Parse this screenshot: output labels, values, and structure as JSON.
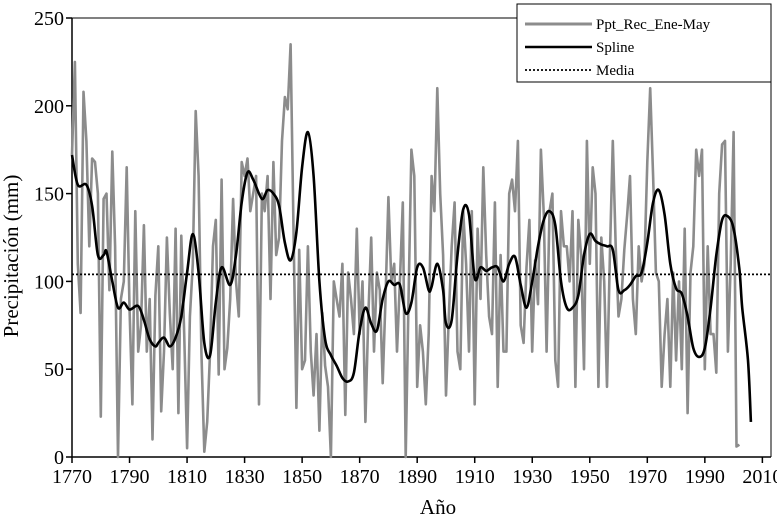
{
  "chart_data": {
    "type": "line",
    "title": "",
    "xlabel": "Año",
    "ylabel": "Precipitación (mm)",
    "xlim": [
      1770,
      2013
    ],
    "ylim": [
      0,
      250
    ],
    "x_ticks": [
      1770,
      1790,
      1810,
      1830,
      1850,
      1870,
      1890,
      1910,
      1930,
      1950,
      1970,
      1990,
      2010
    ],
    "y_ticks": [
      0,
      50,
      100,
      150,
      200,
      250
    ],
    "grid": false,
    "legend_position": "top-right",
    "series": [
      {
        "name": "Ppt_Rec_Ene-May",
        "color": "#8c8c8c",
        "style": "solid",
        "x_start": 1770,
        "values": [
          172,
          225,
          110,
          82,
          208,
          180,
          120,
          170,
          168,
          150,
          23,
          147,
          150,
          95,
          174,
          120,
          0,
          90,
          100,
          165,
          85,
          30,
          140,
          60,
          75,
          132,
          60,
          90,
          10,
          92,
          120,
          26,
          60,
          125,
          82,
          50,
          130,
          25,
          126,
          70,
          5,
          80,
          110,
          197,
          160,
          60,
          3,
          20,
          60,
          120,
          135,
          47,
          158,
          50,
          62,
          90,
          147,
          100,
          80,
          168,
          160,
          170,
          140,
          150,
          160,
          30,
          150,
          140,
          160,
          90,
          168,
          115,
          125,
          180,
          205,
          198,
          235,
          130,
          28,
          118,
          50,
          55,
          120,
          60,
          35,
          70,
          15,
          82,
          52,
          40,
          0,
          100,
          90,
          80,
          110,
          24,
          105,
          90,
          70,
          130,
          70,
          100,
          20,
          80,
          125,
          60,
          105,
          95,
          42,
          90,
          148,
          100,
          110,
          60,
          100,
          145,
          0,
          92,
          175,
          160,
          40,
          75,
          60,
          30,
          70,
          160,
          140,
          210,
          150,
          115,
          35,
          80,
          120,
          145,
          60,
          50,
          140,
          110,
          60,
          140,
          30,
          130,
          90,
          165,
          115,
          80,
          70,
          145,
          40,
          115,
          60,
          60,
          150,
          158,
          140,
          180,
          75,
          65,
          108,
          135,
          60,
          112,
          87,
          175,
          138,
          60,
          140,
          150,
          55,
          40,
          140,
          120,
          120,
          100,
          140,
          40,
          135,
          115,
          50,
          180,
          110,
          165,
          150,
          40,
          125,
          100,
          40,
          115,
          180,
          120,
          80,
          90,
          118,
          138,
          160,
          90,
          70,
          120,
          100,
          110,
          168,
          210,
          160,
          105,
          100,
          40,
          70,
          90,
          40,
          105,
          55,
          100,
          50,
          130,
          25,
          105,
          120,
          175,
          160,
          175,
          50,
          120,
          70,
          70,
          48,
          150,
          178,
          180,
          60,
          110,
          185,
          6,
          7
        ]
      },
      {
        "name": "Spline",
        "color": "#000000",
        "style": "solid",
        "points": [
          [
            1770,
            172
          ],
          [
            1772,
            155
          ],
          [
            1775,
            155
          ],
          [
            1777,
            143
          ],
          [
            1779,
            115
          ],
          [
            1781,
            115
          ],
          [
            1782,
            117
          ],
          [
            1784,
            100
          ],
          [
            1786,
            85
          ],
          [
            1788,
            88
          ],
          [
            1790,
            84
          ],
          [
            1793,
            86
          ],
          [
            1795,
            78
          ],
          [
            1797,
            67
          ],
          [
            1799,
            63
          ],
          [
            1800,
            65
          ],
          [
            1802,
            68
          ],
          [
            1804,
            63
          ],
          [
            1806,
            68
          ],
          [
            1808,
            80
          ],
          [
            1810,
            105
          ],
          [
            1812,
            127
          ],
          [
            1814,
            105
          ],
          [
            1816,
            65
          ],
          [
            1818,
            58
          ],
          [
            1820,
            88
          ],
          [
            1822,
            108
          ],
          [
            1825,
            98
          ],
          [
            1827,
            115
          ],
          [
            1829,
            145
          ],
          [
            1831,
            162
          ],
          [
            1833,
            158
          ],
          [
            1836,
            147
          ],
          [
            1838,
            152
          ],
          [
            1840,
            150
          ],
          [
            1842,
            143
          ],
          [
            1844,
            122
          ],
          [
            1846,
            112
          ],
          [
            1848,
            128
          ],
          [
            1850,
            165
          ],
          [
            1852,
            185
          ],
          [
            1854,
            160
          ],
          [
            1856,
            100
          ],
          [
            1858,
            67
          ],
          [
            1860,
            58
          ],
          [
            1862,
            52
          ],
          [
            1864,
            45
          ],
          [
            1866,
            43
          ],
          [
            1868,
            48
          ],
          [
            1870,
            72
          ],
          [
            1872,
            85
          ],
          [
            1874,
            76
          ],
          [
            1876,
            72
          ],
          [
            1878,
            90
          ],
          [
            1880,
            100
          ],
          [
            1882,
            98
          ],
          [
            1884,
            98
          ],
          [
            1886,
            82
          ],
          [
            1888,
            88
          ],
          [
            1890,
            108
          ],
          [
            1892,
            108
          ],
          [
            1894,
            95
          ],
          [
            1895,
            97
          ],
          [
            1897,
            110
          ],
          [
            1899,
            95
          ],
          [
            1900,
            76
          ],
          [
            1902,
            78
          ],
          [
            1904,
            115
          ],
          [
            1906,
            141
          ],
          [
            1908,
            138
          ],
          [
            1910,
            102
          ],
          [
            1912,
            108
          ],
          [
            1914,
            106
          ],
          [
            1916,
            108
          ],
          [
            1918,
            108
          ],
          [
            1920,
            100
          ],
          [
            1922,
            110
          ],
          [
            1924,
            114
          ],
          [
            1926,
            98
          ],
          [
            1928,
            85
          ],
          [
            1930,
            100
          ],
          [
            1932,
            120
          ],
          [
            1934,
            135
          ],
          [
            1936,
            140
          ],
          [
            1938,
            132
          ],
          [
            1940,
            100
          ],
          [
            1942,
            85
          ],
          [
            1944,
            85
          ],
          [
            1946,
            92
          ],
          [
            1948,
            115
          ],
          [
            1950,
            127
          ],
          [
            1952,
            123
          ],
          [
            1954,
            121
          ],
          [
            1956,
            120
          ],
          [
            1958,
            118
          ],
          [
            1960,
            95
          ],
          [
            1962,
            95
          ],
          [
            1964,
            98
          ],
          [
            1966,
            103
          ],
          [
            1968,
            105
          ],
          [
            1970,
            122
          ],
          [
            1972,
            145
          ],
          [
            1974,
            152
          ],
          [
            1976,
            138
          ],
          [
            1978,
            110
          ],
          [
            1980,
            96
          ],
          [
            1982,
            93
          ],
          [
            1984,
            80
          ],
          [
            1986,
            62
          ],
          [
            1988,
            57
          ],
          [
            1990,
            62
          ],
          [
            1992,
            85
          ],
          [
            1994,
            115
          ],
          [
            1996,
            135
          ],
          [
            1998,
            137
          ],
          [
            2000,
            130
          ],
          [
            2002,
            107
          ],
          [
            2003,
            85
          ],
          [
            2005,
            55
          ],
          [
            2006,
            20
          ]
        ]
      },
      {
        "name": "Media",
        "color": "#000000",
        "style": "dotted",
        "value": 104
      }
    ]
  }
}
